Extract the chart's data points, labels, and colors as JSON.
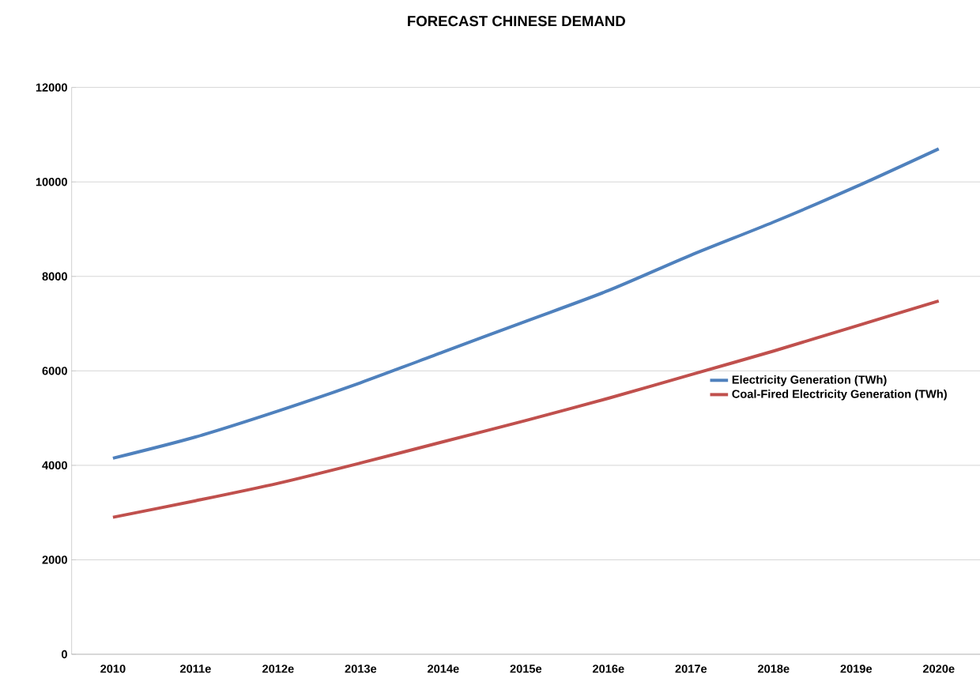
{
  "chart_data": {
    "type": "line",
    "title": "FORECAST CHINESE DEMAND",
    "categories": [
      "2010",
      "2011e",
      "2012e",
      "2013e",
      "2014e",
      "2015e",
      "2016e",
      "2017e",
      "2018e",
      "2019e",
      "2020e"
    ],
    "series": [
      {
        "name": "Electricity Generation (TWh)",
        "color": "#4f81bd",
        "values": [
          4150,
          4600,
          5150,
          5750,
          6400,
          7050,
          7700,
          8450,
          9150,
          9900,
          10700
        ]
      },
      {
        "name": "Coal-Fired Electricity Generation (TWh)",
        "color": "#c0504d",
        "values": [
          2900,
          3250,
          3620,
          4050,
          4500,
          4950,
          5420,
          5920,
          6420,
          6950,
          7480
        ]
      }
    ],
    "ylim": [
      0,
      12000
    ],
    "yticks": [
      0,
      2000,
      4000,
      6000,
      8000,
      10000,
      12000
    ],
    "grid": "y",
    "legend": "right",
    "marker": "none",
    "line_style": "solid"
  }
}
